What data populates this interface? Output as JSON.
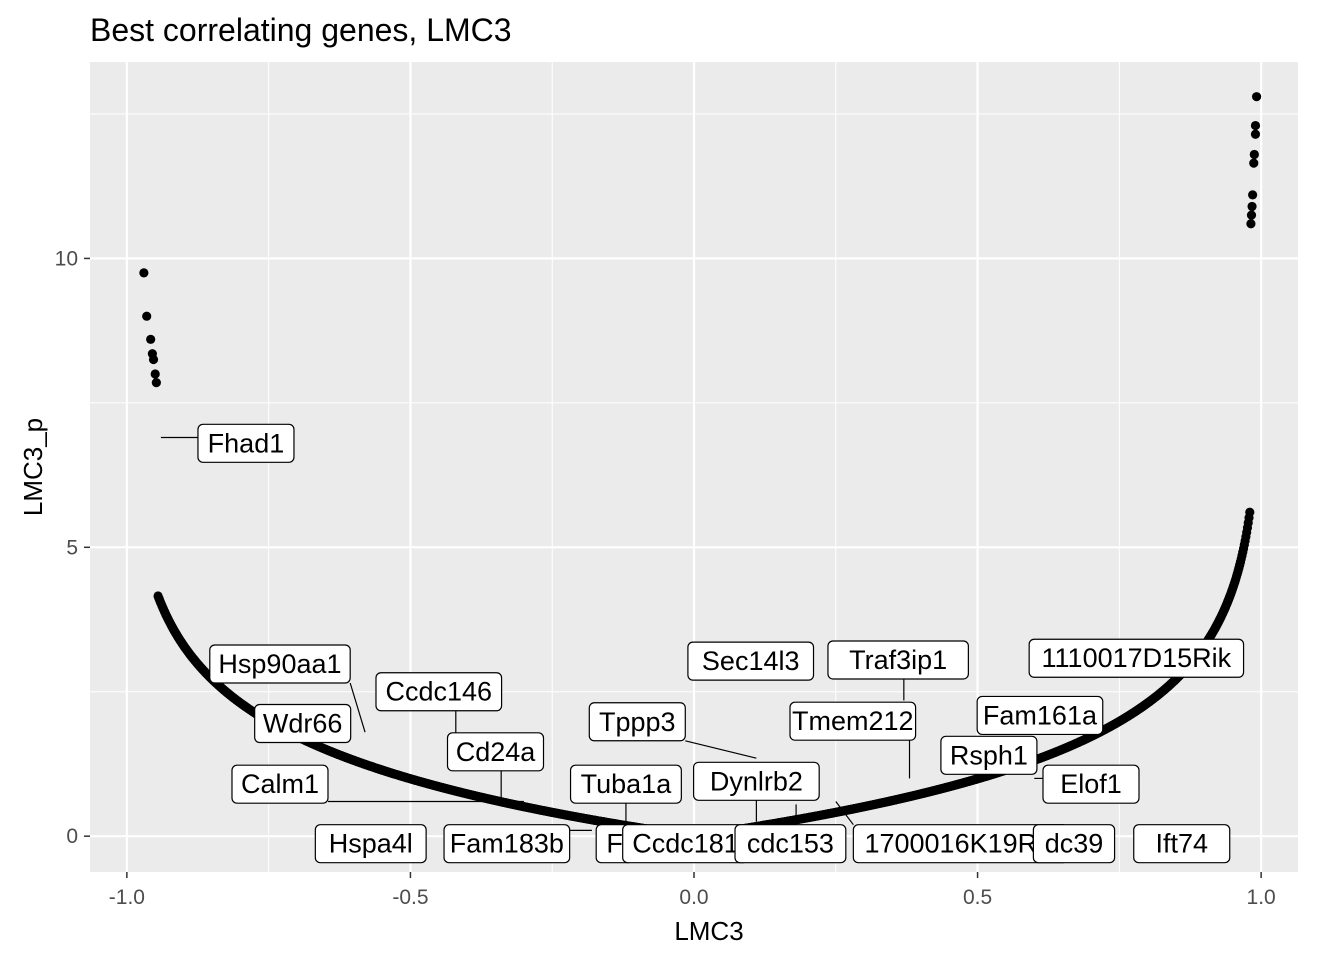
{
  "chart_data": {
    "type": "scatter",
    "title": "Best correlating genes, LMC3",
    "xlabel": "LMC3",
    "ylabel": "LMC3_p",
    "xlim": [
      -1.065,
      1.065
    ],
    "ylim": [
      -0.62,
      13.4
    ],
    "x_ticks": [
      -1.0,
      -0.5,
      0.0,
      0.5,
      1.0
    ],
    "x_tick_labels": [
      "-1.0",
      "-0.5",
      "0.0",
      "0.5",
      "1.0"
    ],
    "y_ticks": [
      0,
      5,
      10
    ],
    "y_tick_labels": [
      "0",
      "5",
      "10"
    ],
    "grid": true,
    "background": "#ebebeb",
    "point_color": "#000000",
    "outlier_points": [
      {
        "x": -0.97,
        "y": 9.75
      },
      {
        "x": -0.965,
        "y": 9.0
      },
      {
        "x": -0.958,
        "y": 8.6
      },
      {
        "x": -0.955,
        "y": 8.35
      },
      {
        "x": -0.953,
        "y": 8.25
      },
      {
        "x": -0.95,
        "y": 8.0
      },
      {
        "x": -0.948,
        "y": 7.85
      },
      {
        "x": 0.992,
        "y": 12.8
      },
      {
        "x": 0.99,
        "y": 12.3
      },
      {
        "x": 0.99,
        "y": 12.15
      },
      {
        "x": 0.988,
        "y": 11.8
      },
      {
        "x": 0.987,
        "y": 11.65
      },
      {
        "x": 0.985,
        "y": 11.1
      },
      {
        "x": 0.984,
        "y": 10.9
      },
      {
        "x": 0.983,
        "y": 10.75
      },
      {
        "x": 0.982,
        "y": 10.6
      }
    ],
    "dense_curve": {
      "description_note": "",
      "x_range": [
        -0.945,
        0.98
      ],
      "min_point": {
        "x": 0.0,
        "y": 0.0
      }
    },
    "gene_labels": [
      {
        "gene": "Fhad1",
        "x": -0.94,
        "y": 6.9,
        "label_x": -0.79,
        "label_y": 6.8
      },
      {
        "gene": "Hsp90aa1",
        "x": -0.58,
        "y": 1.8,
        "label_x": -0.73,
        "label_y": 2.98
      },
      {
        "gene": "Ccdc146",
        "x": -0.42,
        "y": 1.3,
        "label_x": -0.45,
        "label_y": 2.5
      },
      {
        "gene": "Wdr66",
        "x": -0.6,
        "y": 2.05,
        "label_x": -0.69,
        "label_y": 1.95
      },
      {
        "gene": "Cd24a",
        "x": -0.34,
        "y": 0.65,
        "label_x": -0.35,
        "label_y": 1.46
      },
      {
        "gene": "Calm1",
        "x": -0.3,
        "y": 0.6,
        "label_x": -0.73,
        "label_y": 0.9
      },
      {
        "gene": "Tuba1a",
        "x": -0.12,
        "y": 0.15,
        "label_x": -0.12,
        "label_y": 0.9
      },
      {
        "gene": "Hspa4l",
        "x": -0.47,
        "y": 0.0,
        "label_x": -0.57,
        "label_y": -0.13
      },
      {
        "gene": "Fam183b",
        "x": -0.18,
        "y": 0.1,
        "label_x": -0.33,
        "label_y": -0.13
      },
      {
        "gene": "F",
        "x": -0.08,
        "y": 0.05,
        "label_x": -0.14,
        "label_y": -0.13
      },
      {
        "gene": "Ccdc181",
        "x": -0.01,
        "y": 0.01,
        "label_x": -0.015,
        "label_y": -0.13
      },
      {
        "gene": "Tppp3",
        "x": 0.11,
        "y": 1.35,
        "label_x": -0.1,
        "label_y": 1.98
      },
      {
        "gene": "Dynlrb2",
        "x": 0.11,
        "y": 0.25,
        "label_x": 0.11,
        "label_y": 0.95
      },
      {
        "gene": "cdc153",
        "x": 0.18,
        "y": 0.55,
        "label_x": 0.17,
        "label_y": -0.13
      },
      {
        "gene": "Sec14l3",
        "x": 0.15,
        "y": 2.7,
        "label_x": 0.1,
        "label_y": 3.03
      },
      {
        "gene": "Tmem212",
        "x": 0.38,
        "y": 1.0,
        "label_x": 0.28,
        "label_y": 1.99
      },
      {
        "gene": "Traf3ip1",
        "x": 0.37,
        "y": 2.35,
        "label_x": 0.36,
        "label_y": 3.05
      },
      {
        "gene": "1700016K19Rik",
        "x": 0.25,
        "y": 0.6,
        "label_x": 0.47,
        "label_y": -0.13
      },
      {
        "gene": "Rsph1",
        "x": 0.45,
        "y": 1.15,
        "label_x": 0.52,
        "label_y": 1.4
      },
      {
        "gene": "Fam161a",
        "x": 0.6,
        "y": 2.0,
        "label_x": 0.61,
        "label_y": 2.09
      },
      {
        "gene": "1110017D15Rik",
        "x": 0.69,
        "y": 3.1,
        "label_x": 0.78,
        "label_y": 3.08
      },
      {
        "gene": "Elof1",
        "x": 0.6,
        "y": 1.0,
        "label_x": 0.7,
        "label_y": 0.9
      },
      {
        "gene": "dc39",
        "x": 0.5,
        "y": 0.1,
        "label_x": 0.67,
        "label_y": -0.13
      },
      {
        "gene": "Ift74",
        "x": 0.77,
        "y": -0.05,
        "label_x": 0.86,
        "label_y": -0.13
      }
    ]
  }
}
